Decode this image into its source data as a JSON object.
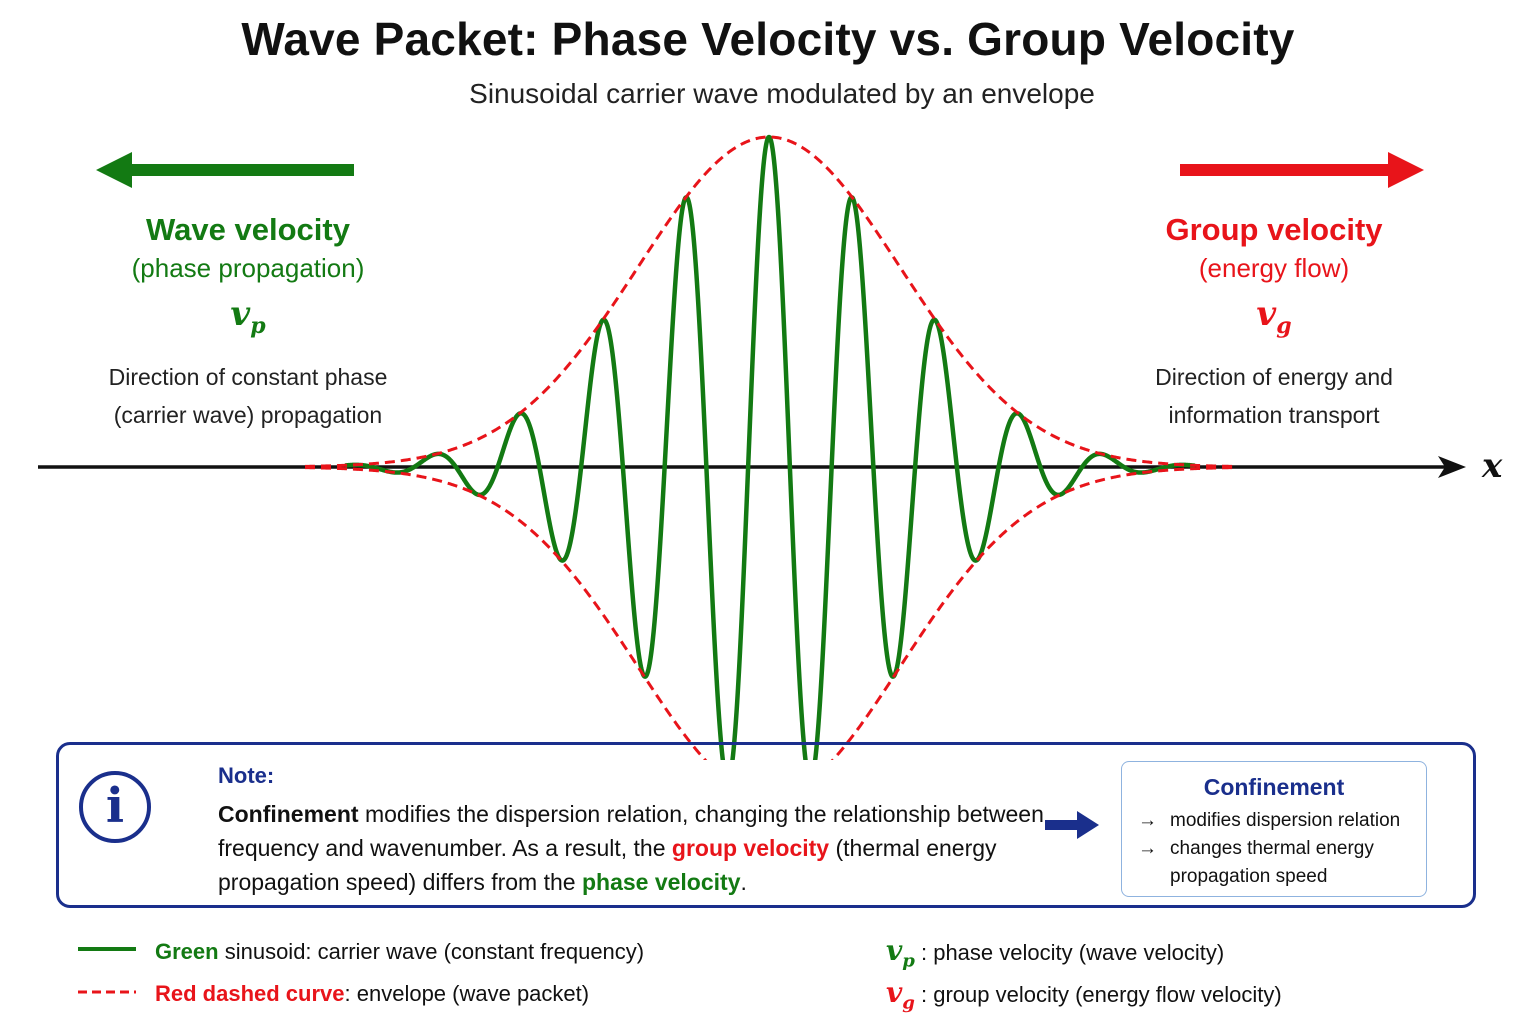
{
  "title": "Wave Packet: Phase Velocity vs. Group Velocity",
  "subtitle": "Sinusoidal carrier wave modulated by an envelope",
  "colors": {
    "carrier": "#137a13",
    "envelope": "#e8141a",
    "axis": "#111111",
    "accent": "#1a2f8c"
  },
  "axis_label": "x",
  "left_panel": {
    "heading": "Wave velocity",
    "subheading": "(phase propagation)",
    "symbol": "v",
    "symbol_sub": "p",
    "description": "Direction of constant phase (carrier wave) propagation",
    "arrow_direction": "left"
  },
  "right_panel": {
    "heading": "Group velocity",
    "subheading": "(energy flow)",
    "symbol": "v",
    "symbol_sub": "g",
    "description": "Direction of energy and information transport",
    "arrow_direction": "right"
  },
  "note": {
    "label": "Note:",
    "icon": "info-icon",
    "t1": "Confinement",
    "t2": " modifies the dispersion relation, changing the relationship between frequency and wavenumber. As a result, the ",
    "t3": "group velocity",
    "t4": " (thermal energy propagation speed) differs from the ",
    "t5": "phase velocity",
    "t6": ".",
    "box": {
      "title": "Confinement",
      "item1": "modifies dispersion relation",
      "item2a": "changes thermal energy",
      "item2b": "propagation speed"
    }
  },
  "legend": {
    "green_word": "Green",
    "green_rest": " sinusoid: carrier wave (constant frequency)",
    "red_word": "Red dashed curve",
    "red_rest": ": envelope (wave packet)",
    "vp_symbol": "v",
    "vp_sub": "p",
    "vp_text": " : phase velocity (wave velocity)",
    "vg_symbol": "v",
    "vg_sub": "g",
    "vg_text": " : group velocity (energy flow velocity)"
  }
}
